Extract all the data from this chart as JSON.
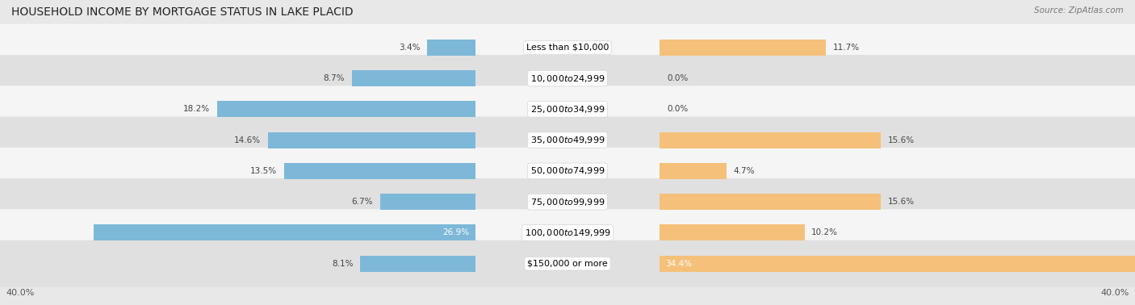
{
  "title": "HOUSEHOLD INCOME BY MORTGAGE STATUS IN LAKE PLACID",
  "source": "Source: ZipAtlas.com",
  "categories": [
    "Less than $10,000",
    "$10,000 to $24,999",
    "$25,000 to $34,999",
    "$35,000 to $49,999",
    "$50,000 to $74,999",
    "$75,000 to $99,999",
    "$100,000 to $149,999",
    "$150,000 or more"
  ],
  "without_mortgage": [
    3.4,
    8.7,
    18.2,
    14.6,
    13.5,
    6.7,
    26.9,
    8.1
  ],
  "with_mortgage": [
    11.7,
    0.0,
    0.0,
    15.6,
    4.7,
    15.6,
    10.2,
    34.4
  ],
  "color_without": "#7db8d8",
  "color_with": "#f5c07a",
  "color_without_dark": "#5a9fc2",
  "color_with_dark": "#e8a84a",
  "axis_max": 40.0,
  "bg_color": "#e8e8e8",
  "row_bg_colors": [
    "#f5f5f5",
    "#e0e0e0"
  ],
  "title_fontsize": 10,
  "label_fontsize": 8,
  "bar_label_fontsize": 7.5,
  "legend_fontsize": 8.5,
  "axis_label_fontsize": 8
}
